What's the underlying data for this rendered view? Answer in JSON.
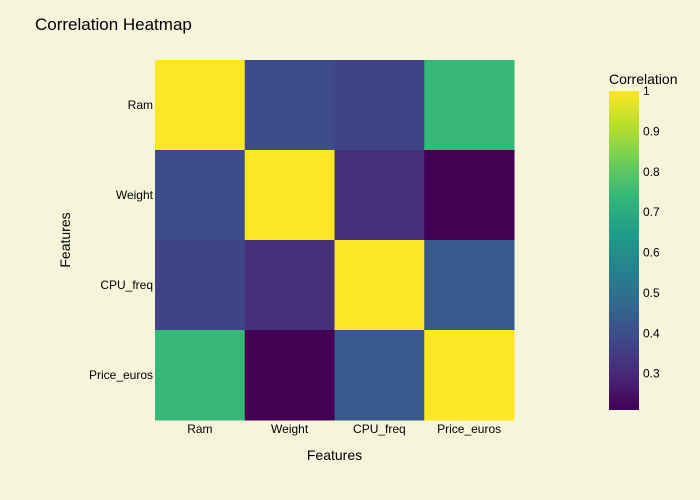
{
  "chart_data": {
    "type": "heatmap",
    "title": "Correlation Heatmap",
    "xlabel": "Features",
    "ylabel": "Features",
    "x_categories": [
      "Ram",
      "Weight",
      "CPU_freq",
      "Price_euros"
    ],
    "y_categories": [
      "Ram",
      "Weight",
      "CPU_freq",
      "Price_euros"
    ],
    "z": [
      [
        1.0,
        0.39,
        0.37,
        0.74
      ],
      [
        0.39,
        1.0,
        0.32,
        0.21
      ],
      [
        0.37,
        0.32,
        1.0,
        0.43
      ],
      [
        0.74,
        0.21,
        0.43,
        1.0
      ]
    ],
    "zrange": [
      0.21,
      1.0
    ],
    "colorscale": "Viridis",
    "colorbar": {
      "title": "Correlation",
      "ticks": [
        0.3,
        0.4,
        0.5,
        0.6,
        0.7,
        0.8,
        0.9,
        1
      ]
    }
  }
}
